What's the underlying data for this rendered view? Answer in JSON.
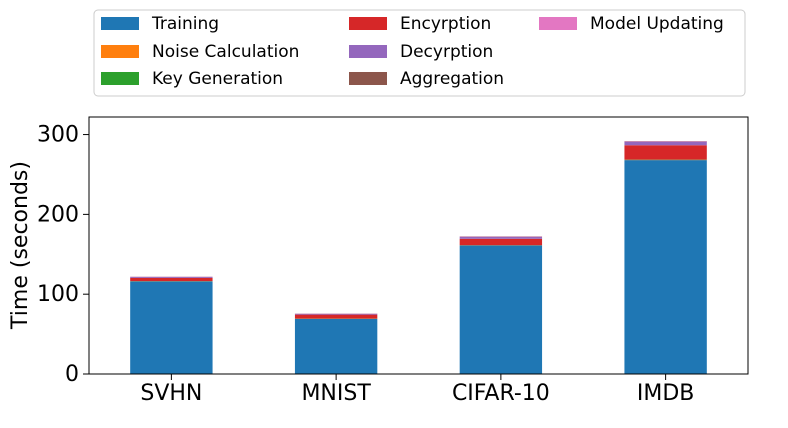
{
  "chart_data": {
    "type": "bar",
    "stacked": true,
    "categories": [
      "SVHN",
      "MNIST",
      "CIFAR-10",
      "IMDB"
    ],
    "ylabel": "Time (seconds)",
    "xlabel": "",
    "ylim": [
      0,
      322
    ],
    "yticks": [
      0,
      100,
      200,
      300
    ],
    "legend_placement": "top",
    "series": [
      {
        "name": "Training",
        "color": "#1f77b4",
        "values": [
          116,
          69,
          161,
          268
        ]
      },
      {
        "name": "Noise Calculation",
        "color": "#ff7f0e",
        "values": [
          0.2,
          0.2,
          0.2,
          0.3
        ]
      },
      {
        "name": "Key Generation",
        "color": "#2ca02c",
        "values": [
          0.2,
          0.2,
          0.2,
          0.3
        ]
      },
      {
        "name": "Encyrption",
        "color": "#d62728",
        "values": [
          4,
          5,
          8,
          18
        ]
      },
      {
        "name": "Decyrption",
        "color": "#9467bd",
        "values": [
          1.2,
          1.0,
          2.5,
          4.5
        ]
      },
      {
        "name": "Aggregation",
        "color": "#8c564b",
        "values": [
          0.2,
          0.2,
          0.3,
          0.4
        ]
      },
      {
        "name": "Model Updating",
        "color": "#e377c2",
        "values": [
          0.2,
          0.2,
          0.3,
          0.4
        ]
      }
    ]
  }
}
